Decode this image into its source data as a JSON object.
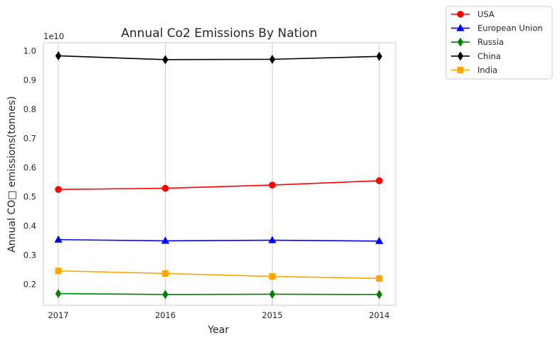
{
  "chart_data": {
    "type": "line",
    "title": "Annual Co2 Emissions By Nation",
    "xlabel": "Year",
    "ylabel": "Annual CO□ emissions(tonnes)",
    "offset_text": "1e10",
    "categories": [
      "2017",
      "2016",
      "2015",
      "2014"
    ],
    "y_ticks": [
      "0.2",
      "0.3",
      "0.4",
      "0.5",
      "0.6",
      "0.7",
      "0.8",
      "0.9",
      "1.0"
    ],
    "y_tick_values": [
      0.2,
      0.3,
      0.4,
      0.5,
      0.6,
      0.7,
      0.8,
      0.9,
      1.0
    ],
    "ylim": [
      0.128,
      1.028
    ],
    "grid": "vertical",
    "legend_position": "outside top-right",
    "series": [
      {
        "name": "USA",
        "color": "#ff0000",
        "marker": "circle",
        "values": [
          0.525,
          0.529,
          0.54,
          0.555
        ]
      },
      {
        "name": "European Union",
        "color": "#0000ff",
        "marker": "triangle",
        "values": [
          0.353,
          0.349,
          0.351,
          0.348
        ]
      },
      {
        "name": "Russia",
        "color": "#008000",
        "marker": "thin-diamond",
        "values": [
          0.168,
          0.165,
          0.166,
          0.165
        ]
      },
      {
        "name": "China",
        "color": "#000000",
        "marker": "thin-diamond",
        "values": [
          0.983,
          0.97,
          0.971,
          0.981
        ]
      },
      {
        "name": "India",
        "color": "#ffa500",
        "marker": "square",
        "values": [
          0.246,
          0.237,
          0.227,
          0.22
        ]
      }
    ]
  }
}
